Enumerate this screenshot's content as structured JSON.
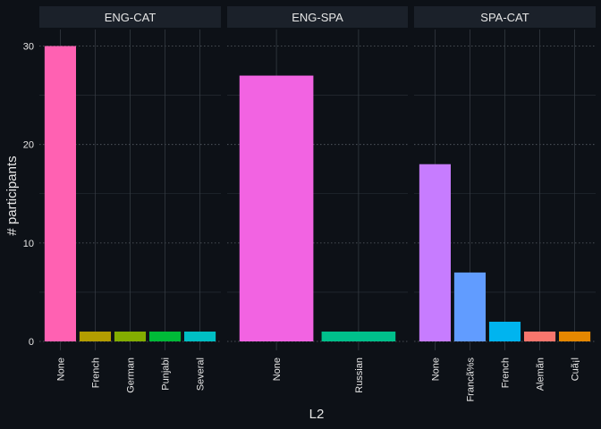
{
  "chart_data": {
    "type": "bar",
    "xlabel": "L2",
    "ylabel": "# participants",
    "ylim": [
      0,
      30
    ],
    "y_ticks": [
      0,
      10,
      20,
      30
    ],
    "facets": [
      {
        "title": "ENG-CAT",
        "categories": [
          "None",
          "French",
          "German",
          "Punjabi",
          "Several"
        ],
        "values": [
          30,
          1,
          1,
          1,
          1
        ],
        "colors": [
          "#ff61b2",
          "#b39d00",
          "#83ad00",
          "#00ba38",
          "#00bfc4"
        ]
      },
      {
        "title": "ENG-SPA",
        "categories": [
          "None",
          "Russian"
        ],
        "values": [
          27,
          1
        ],
        "colors": [
          "#f263e2",
          "#00c08b"
        ]
      },
      {
        "title": "SPA-CAT",
        "categories": [
          "None",
          "Francã%s",
          "French",
          "Alemãn",
          "Cuã¡l"
        ],
        "values": [
          18,
          7,
          2,
          1,
          1
        ],
        "colors": [
          "#c77cff",
          "#619cff",
          "#00b4ef",
          "#f8766d",
          "#e58700"
        ]
      }
    ]
  }
}
